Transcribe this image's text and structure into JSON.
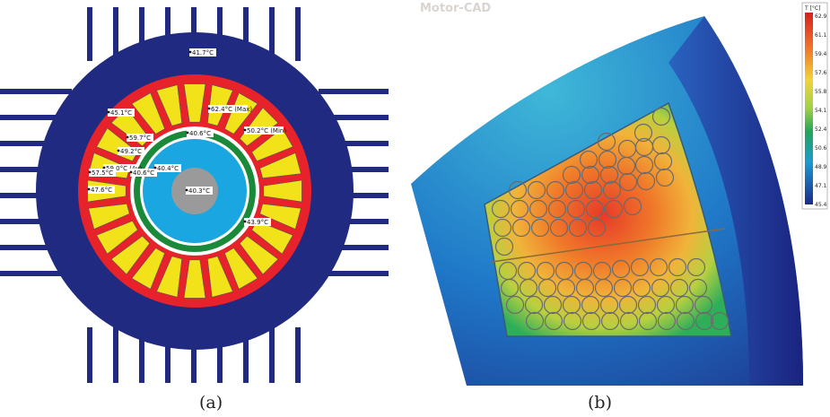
{
  "panel_a": {
    "caption": "(a)",
    "labels": [
      {
        "text": "41.7°C"
      },
      {
        "text": "45.1°C"
      },
      {
        "text": "62.4°C (Max)"
      },
      {
        "text": "59.7°C"
      },
      {
        "text": "50.2°C (Min)"
      },
      {
        "text": "40.6°C"
      },
      {
        "text": "49.2°C"
      },
      {
        "text": "59.0°C (Av)"
      },
      {
        "text": "40.6°C"
      },
      {
        "text": "40.4°C"
      },
      {
        "text": "57.5°C"
      },
      {
        "text": "47.6°C"
      },
      {
        "text": "40.3°C"
      },
      {
        "text": "43.9°C"
      }
    ]
  },
  "panel_b": {
    "caption": "(b)",
    "watermark": "Motor-CAD",
    "colorbar": {
      "title": "T [°C]",
      "ticks": [
        "62.9",
        "61.1",
        "59.4",
        "57.6",
        "55.8",
        "54.1",
        "52.4",
        "50.6",
        "48.9",
        "47.1",
        "45.4"
      ]
    }
  }
}
